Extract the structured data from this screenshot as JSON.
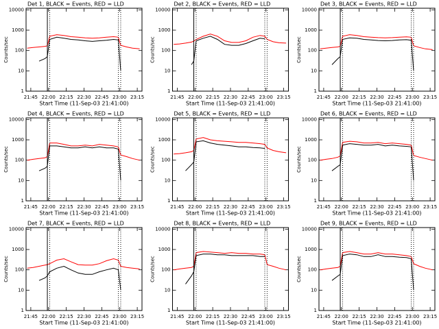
{
  "chart_data": [
    {
      "type": "line",
      "title": "Det 1, BLACK = Events, RED = LLD",
      "ylabel": "Counts/sec",
      "xlabel": "Start Time (11-Sep-03 21:41:00)",
      "ylog": true,
      "xlim": [
        1301,
        1399
      ],
      "ylim": [
        1,
        12000
      ],
      "xticks": [
        {
          "value": 1305,
          "label": "21:45"
        },
        {
          "value": 1320,
          "label": "22:00"
        },
        {
          "value": 1335,
          "label": "22:15"
        },
        {
          "value": 1350,
          "label": "22:30"
        },
        {
          "value": 1365,
          "label": "22:45"
        },
        {
          "value": 1380,
          "label": "23:00"
        },
        {
          "value": 1395,
          "label": "23:15"
        }
      ],
      "yticks": [
        1,
        10,
        100,
        1000,
        10000
      ],
      "vline_solid": 1319,
      "vlines_dotted": [
        1321,
        1379,
        1381
      ],
      "x": [
        1302,
        1307,
        1312,
        1317,
        1319,
        1321,
        1327,
        1333,
        1339,
        1345,
        1351,
        1357,
        1363,
        1369,
        1375,
        1379,
        1381,
        1386,
        1391,
        1397
      ],
      "series": [
        {
          "color": "#ff0000",
          "values": [
            130,
            140,
            150,
            160,
            170,
            500,
            600,
            550,
            480,
            450,
            420,
            400,
            420,
            450,
            480,
            450,
            180,
            150,
            130,
            120
          ]
        },
        {
          "color": "#000000",
          "values": [
            null,
            null,
            30,
            40,
            50,
            350,
            450,
            400,
            350,
            330,
            300,
            280,
            300,
            320,
            350,
            330,
            10,
            null,
            null,
            null
          ]
        }
      ]
    },
    {
      "type": "line",
      "title": "Det 2, BLACK = Events, RED = LLD",
      "ylabel": "Counts/sec",
      "xlabel": "Start Time (11-Sep-03 21:41:00)",
      "ylog": true,
      "xlim": [
        1301,
        1399
      ],
      "ylim": [
        1,
        12000
      ],
      "xticks": [
        {
          "value": 1305,
          "label": "21:45"
        },
        {
          "value": 1320,
          "label": "22:00"
        },
        {
          "value": 1335,
          "label": "22:15"
        },
        {
          "value": 1350,
          "label": "22:30"
        },
        {
          "value": 1365,
          "label": "22:45"
        },
        {
          "value": 1380,
          "label": "23:00"
        },
        {
          "value": 1395,
          "label": "23:15"
        }
      ],
      "yticks": [
        1,
        10,
        100,
        1000,
        10000
      ],
      "vline_solid": 1319,
      "vlines_dotted": [
        1321,
        1379,
        1381
      ],
      "x": [
        1302,
        1307,
        1312,
        1317,
        1319,
        1321,
        1327,
        1333,
        1339,
        1345,
        1351,
        1357,
        1363,
        1369,
        1375,
        1379,
        1381,
        1386,
        1391,
        1397
      ],
      "series": [
        {
          "color": "#ff0000",
          "values": [
            200,
            210,
            230,
            260,
            290,
            350,
            500,
            650,
            500,
            300,
            250,
            250,
            300,
            450,
            550,
            500,
            350,
            270,
            240,
            230
          ]
        },
        {
          "color": "#000000",
          "values": [
            null,
            null,
            null,
            20,
            30,
            300,
            400,
            500,
            350,
            200,
            180,
            180,
            220,
            300,
            400,
            380,
            null,
            null,
            null,
            null
          ]
        }
      ]
    },
    {
      "type": "line",
      "title": "Det 3, BLACK = Events, RED = LLD",
      "ylabel": "Counts/sec",
      "xlabel": "Start Time (11-Sep-03 21:41:00)",
      "ylog": true,
      "xlim": [
        1301,
        1399
      ],
      "ylim": [
        1,
        12000
      ],
      "xticks": [
        {
          "value": 1305,
          "label": "21:45"
        },
        {
          "value": 1320,
          "label": "22:00"
        },
        {
          "value": 1335,
          "label": "22:15"
        },
        {
          "value": 1350,
          "label": "22:30"
        },
        {
          "value": 1365,
          "label": "22:45"
        },
        {
          "value": 1380,
          "label": "23:00"
        },
        {
          "value": 1395,
          "label": "23:15"
        }
      ],
      "yticks": [
        1,
        10,
        100,
        1000,
        10000
      ],
      "vline_solid": 1319,
      "vlines_dotted": [
        1321,
        1379,
        1381
      ],
      "x": [
        1302,
        1307,
        1312,
        1317,
        1319,
        1321,
        1327,
        1333,
        1339,
        1345,
        1351,
        1357,
        1363,
        1369,
        1375,
        1379,
        1381,
        1386,
        1391,
        1397
      ],
      "series": [
        {
          "color": "#ff0000",
          "values": [
            120,
            130,
            140,
            150,
            160,
            500,
            600,
            550,
            480,
            450,
            430,
            420,
            430,
            450,
            470,
            450,
            170,
            140,
            120,
            110
          ]
        },
        {
          "color": "#000000",
          "values": [
            null,
            null,
            20,
            40,
            50,
            350,
            420,
            400,
            350,
            330,
            310,
            300,
            310,
            330,
            340,
            320,
            10,
            null,
            null,
            null
          ]
        }
      ]
    },
    {
      "type": "line",
      "title": "Det 4, BLACK = Events, RED = LLD",
      "ylabel": "Counts/sec",
      "xlabel": "Start Time (11-Sep-03 21:41:00)",
      "ylog": true,
      "xlim": [
        1301,
        1399
      ],
      "ylim": [
        1,
        12000
      ],
      "xticks": [
        {
          "value": 1305,
          "label": "21:45"
        },
        {
          "value": 1320,
          "label": "22:00"
        },
        {
          "value": 1335,
          "label": "22:15"
        },
        {
          "value": 1350,
          "label": "22:30"
        },
        {
          "value": 1365,
          "label": "22:45"
        },
        {
          "value": 1380,
          "label": "23:00"
        },
        {
          "value": 1395,
          "label": "23:15"
        }
      ],
      "yticks": [
        1,
        10,
        100,
        1000,
        10000
      ],
      "vline_solid": 1319,
      "vlines_dotted": [
        1321,
        1379,
        1381
      ],
      "x": [
        1302,
        1307,
        1312,
        1317,
        1319,
        1321,
        1327,
        1333,
        1339,
        1345,
        1351,
        1357,
        1363,
        1369,
        1375,
        1379,
        1381,
        1386,
        1391,
        1397
      ],
      "series": [
        {
          "color": "#ff0000",
          "values": [
            100,
            110,
            120,
            130,
            150,
            700,
            700,
            600,
            500,
            500,
            550,
            500,
            600,
            550,
            500,
            450,
            180,
            150,
            120,
            100
          ]
        },
        {
          "color": "#000000",
          "values": [
            null,
            null,
            30,
            40,
            50,
            500,
            500,
            450,
            400,
            400,
            450,
            400,
            450,
            400,
            400,
            350,
            10,
            null,
            null,
            null
          ]
        }
      ]
    },
    {
      "type": "line",
      "title": "Det 5, BLACK = Events, RED = LLD",
      "ylabel": "Counts/sec",
      "xlabel": "Start Time (11-Sep-03 21:41:00)",
      "ylog": true,
      "xlim": [
        1301,
        1399
      ],
      "ylim": [
        1,
        12000
      ],
      "xticks": [
        {
          "value": 1305,
          "label": "21:45"
        },
        {
          "value": 1320,
          "label": "22:00"
        },
        {
          "value": 1335,
          "label": "22:15"
        },
        {
          "value": 1350,
          "label": "22:30"
        },
        {
          "value": 1365,
          "label": "22:45"
        },
        {
          "value": 1380,
          "label": "23:00"
        },
        {
          "value": 1395,
          "label": "23:15"
        }
      ],
      "yticks": [
        1,
        10,
        100,
        1000,
        10000
      ],
      "vline_solid": 1319,
      "vlines_dotted": [
        1321,
        1379,
        1381
      ],
      "x": [
        1302,
        1307,
        1312,
        1317,
        1319,
        1321,
        1327,
        1333,
        1339,
        1345,
        1351,
        1357,
        1363,
        1369,
        1375,
        1379,
        1381,
        1386,
        1391,
        1397
      ],
      "series": [
        {
          "color": "#ff0000",
          "values": [
            200,
            210,
            230,
            260,
            300,
            1100,
            1300,
            1000,
            900,
            850,
            800,
            750,
            750,
            700,
            650,
            600,
            400,
            300,
            260,
            230
          ]
        },
        {
          "color": "#000000",
          "values": [
            null,
            null,
            30,
            60,
            80,
            800,
            900,
            700,
            600,
            550,
            500,
            450,
            450,
            420,
            400,
            380,
            null,
            null,
            null,
            null
          ]
        }
      ]
    },
    {
      "type": "line",
      "title": "Det 6, BLACK = Events, RED = LLD",
      "ylabel": "Counts/sec",
      "xlabel": "Start Time (11-Sep-03 21:41:00)",
      "ylog": true,
      "xlim": [
        1301,
        1399
      ],
      "ylim": [
        1,
        12000
      ],
      "xticks": [
        {
          "value": 1305,
          "label": "21:45"
        },
        {
          "value": 1320,
          "label": "22:00"
        },
        {
          "value": 1335,
          "label": "22:15"
        },
        {
          "value": 1350,
          "label": "22:30"
        },
        {
          "value": 1365,
          "label": "22:45"
        },
        {
          "value": 1380,
          "label": "23:00"
        },
        {
          "value": 1395,
          "label": "23:15"
        }
      ],
      "yticks": [
        1,
        10,
        100,
        1000,
        10000
      ],
      "vline_solid": 1319,
      "vlines_dotted": [
        1321,
        1379,
        1381
      ],
      "x": [
        1302,
        1307,
        1312,
        1317,
        1319,
        1321,
        1327,
        1333,
        1339,
        1345,
        1351,
        1357,
        1363,
        1369,
        1375,
        1379,
        1381,
        1386,
        1391,
        1397
      ],
      "series": [
        {
          "color": "#ff0000",
          "values": [
            100,
            110,
            120,
            140,
            160,
            750,
            850,
            800,
            700,
            700,
            750,
            650,
            700,
            650,
            600,
            550,
            170,
            140,
            120,
            100
          ]
        },
        {
          "color": "#000000",
          "values": [
            null,
            null,
            30,
            50,
            60,
            550,
            650,
            600,
            550,
            550,
            600,
            500,
            550,
            500,
            480,
            450,
            10,
            null,
            null,
            null
          ]
        }
      ]
    },
    {
      "type": "line",
      "title": "Det 7, BLACK = Events, RED = LLD",
      "ylabel": "Counts/sec",
      "xlabel": "Start Time (11-Sep-03 21:41:00)",
      "ylog": true,
      "xlim": [
        1301,
        1399
      ],
      "ylim": [
        1,
        12000
      ],
      "xticks": [
        {
          "value": 1305,
          "label": "21:45"
        },
        {
          "value": 1320,
          "label": "22:00"
        },
        {
          "value": 1335,
          "label": "22:15"
        },
        {
          "value": 1350,
          "label": "22:30"
        },
        {
          "value": 1365,
          "label": "22:45"
        },
        {
          "value": 1380,
          "label": "23:00"
        },
        {
          "value": 1395,
          "label": "23:15"
        }
      ],
      "yticks": [
        1,
        10,
        100,
        1000,
        10000
      ],
      "vline_solid": 1319,
      "vlines_dotted": [
        1321,
        1379,
        1381
      ],
      "x": [
        1302,
        1307,
        1312,
        1317,
        1319,
        1321,
        1327,
        1333,
        1339,
        1345,
        1351,
        1357,
        1363,
        1369,
        1375,
        1379,
        1381,
        1386,
        1391,
        1397
      ],
      "series": [
        {
          "color": "#ff0000",
          "values": [
            120,
            130,
            150,
            170,
            180,
            200,
            300,
            350,
            250,
            180,
            170,
            170,
            200,
            280,
            350,
            300,
            150,
            130,
            120,
            110
          ]
        },
        {
          "color": "#000000",
          "values": [
            null,
            null,
            30,
            40,
            50,
            80,
            120,
            150,
            100,
            70,
            60,
            60,
            80,
            100,
            120,
            100,
            10,
            null,
            null,
            null
          ]
        }
      ]
    },
    {
      "type": "line",
      "title": "Det 8, BLACK = Events, RED = LLD",
      "ylabel": "Counts/sec",
      "xlabel": "Start Time (11-Sep-03 21:41:00)",
      "ylog": true,
      "xlim": [
        1301,
        1399
      ],
      "ylim": [
        1,
        12000
      ],
      "xticks": [
        {
          "value": 1305,
          "label": "21:45"
        },
        {
          "value": 1320,
          "label": "22:00"
        },
        {
          "value": 1335,
          "label": "22:15"
        },
        {
          "value": 1350,
          "label": "22:30"
        },
        {
          "value": 1365,
          "label": "22:45"
        },
        {
          "value": 1380,
          "label": "23:00"
        },
        {
          "value": 1395,
          "label": "23:15"
        }
      ],
      "yticks": [
        1,
        10,
        100,
        1000,
        10000
      ],
      "vline_solid": 1319,
      "vlines_dotted": [
        1321,
        1379,
        1381
      ],
      "x": [
        1302,
        1307,
        1312,
        1317,
        1319,
        1321,
        1327,
        1333,
        1339,
        1345,
        1351,
        1357,
        1363,
        1369,
        1375,
        1379,
        1381,
        1386,
        1391,
        1397
      ],
      "series": [
        {
          "color": "#ff0000",
          "values": [
            100,
            110,
            120,
            130,
            150,
            700,
            800,
            750,
            700,
            650,
            700,
            650,
            650,
            600,
            600,
            550,
            180,
            150,
            120,
            100
          ]
        },
        {
          "color": "#000000",
          "values": [
            null,
            null,
            20,
            50,
            80,
            500,
            600,
            600,
            550,
            550,
            500,
            500,
            500,
            500,
            450,
            450,
            null,
            null,
            null,
            null
          ]
        }
      ]
    },
    {
      "type": "line",
      "title": "Det 9, BLACK = Events, RED = LLD",
      "ylabel": "Counts/sec",
      "xlabel": "Start Time (11-Sep-03 21:41:00)",
      "ylog": true,
      "xlim": [
        1301,
        1399
      ],
      "ylim": [
        1,
        12000
      ],
      "xticks": [
        {
          "value": 1305,
          "label": "21:45"
        },
        {
          "value": 1320,
          "label": "22:00"
        },
        {
          "value": 1335,
          "label": "22:15"
        },
        {
          "value": 1350,
          "label": "22:30"
        },
        {
          "value": 1365,
          "label": "22:45"
        },
        {
          "value": 1380,
          "label": "23:00"
        },
        {
          "value": 1395,
          "label": "23:15"
        }
      ],
      "yticks": [
        1,
        10,
        100,
        1000,
        10000
      ],
      "vline_solid": 1319,
      "vlines_dotted": [
        1321,
        1379,
        1381
      ],
      "x": [
        1302,
        1307,
        1312,
        1317,
        1319,
        1321,
        1327,
        1333,
        1339,
        1345,
        1351,
        1357,
        1363,
        1369,
        1375,
        1379,
        1381,
        1386,
        1391,
        1397
      ],
      "series": [
        {
          "color": "#ff0000",
          "values": [
            100,
            110,
            120,
            130,
            150,
            700,
            800,
            700,
            600,
            600,
            700,
            600,
            600,
            550,
            500,
            450,
            200,
            150,
            120,
            100
          ]
        },
        {
          "color": "#000000",
          "values": [
            null,
            null,
            30,
            50,
            60,
            500,
            600,
            550,
            450,
            450,
            550,
            450,
            450,
            420,
            400,
            350,
            10,
            null,
            null,
            null
          ]
        }
      ]
    }
  ]
}
